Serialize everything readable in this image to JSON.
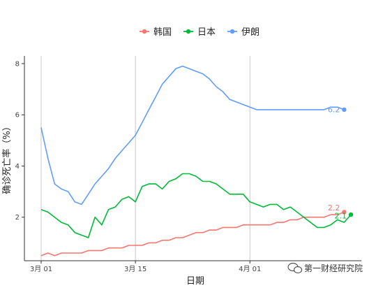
{
  "chart_data": {
    "type": "line",
    "xlabel": "日期",
    "ylabel": "确诊死亡率（%）",
    "x_ticks": [
      {
        "day": 0,
        "label": "3月 01"
      },
      {
        "day": 14,
        "label": "3月 15"
      },
      {
        "day": 31,
        "label": "4月 01"
      }
    ],
    "xlim": [
      0,
      46
    ],
    "ylim": [
      0.3,
      8.3
    ],
    "y_ticks": [
      2,
      4,
      6,
      8
    ],
    "grid": "vertical-major",
    "legend_position": "top",
    "series": [
      {
        "name": "韩国",
        "color": "#F8766D",
        "end_label": "2.2",
        "points": [
          [
            0,
            0.5
          ],
          [
            1,
            0.6
          ],
          [
            2,
            0.5
          ],
          [
            3,
            0.6
          ],
          [
            4,
            0.6
          ],
          [
            5,
            0.6
          ],
          [
            6,
            0.6
          ],
          [
            7,
            0.7
          ],
          [
            8,
            0.7
          ],
          [
            9,
            0.7
          ],
          [
            10,
            0.8
          ],
          [
            11,
            0.8
          ],
          [
            12,
            0.8
          ],
          [
            13,
            0.9
          ],
          [
            14,
            0.9
          ],
          [
            15,
            0.9
          ],
          [
            16,
            1.0
          ],
          [
            17,
            1.0
          ],
          [
            18,
            1.1
          ],
          [
            19,
            1.1
          ],
          [
            20,
            1.2
          ],
          [
            21,
            1.2
          ],
          [
            22,
            1.3
          ],
          [
            23,
            1.4
          ],
          [
            24,
            1.4
          ],
          [
            25,
            1.5
          ],
          [
            26,
            1.5
          ],
          [
            27,
            1.6
          ],
          [
            28,
            1.6
          ],
          [
            29,
            1.6
          ],
          [
            30,
            1.7
          ],
          [
            31,
            1.7
          ],
          [
            32,
            1.7
          ],
          [
            33,
            1.7
          ],
          [
            34,
            1.7
          ],
          [
            35,
            1.8
          ],
          [
            36,
            1.8
          ],
          [
            37,
            1.9
          ],
          [
            38,
            1.9
          ],
          [
            39,
            2.0
          ],
          [
            40,
            2.0
          ],
          [
            41,
            2.0
          ],
          [
            42,
            2.0
          ],
          [
            43,
            2.1
          ],
          [
            44,
            2.1
          ],
          [
            45,
            2.2
          ]
        ]
      },
      {
        "name": "日本",
        "color": "#00BA38",
        "end_label": "2.1",
        "points": [
          [
            0,
            2.3
          ],
          [
            1,
            2.2
          ],
          [
            2,
            2.0
          ],
          [
            3,
            1.8
          ],
          [
            4,
            1.7
          ],
          [
            5,
            1.4
          ],
          [
            6,
            1.3
          ],
          [
            7,
            1.2
          ],
          [
            8,
            2.0
          ],
          [
            9,
            1.7
          ],
          [
            10,
            2.3
          ],
          [
            11,
            2.4
          ],
          [
            12,
            2.7
          ],
          [
            13,
            2.8
          ],
          [
            14,
            2.6
          ],
          [
            15,
            3.2
          ],
          [
            16,
            3.3
          ],
          [
            17,
            3.3
          ],
          [
            18,
            3.1
          ],
          [
            19,
            3.4
          ],
          [
            20,
            3.5
          ],
          [
            21,
            3.7
          ],
          [
            22,
            3.7
          ],
          [
            23,
            3.6
          ],
          [
            24,
            3.4
          ],
          [
            25,
            3.4
          ],
          [
            26,
            3.3
          ],
          [
            27,
            3.1
          ],
          [
            28,
            2.9
          ],
          [
            29,
            2.9
          ],
          [
            30,
            2.9
          ],
          [
            31,
            2.6
          ],
          [
            32,
            2.5
          ],
          [
            33,
            2.4
          ],
          [
            34,
            2.5
          ],
          [
            35,
            2.5
          ],
          [
            36,
            2.3
          ],
          [
            37,
            2.4
          ],
          [
            38,
            2.2
          ],
          [
            39,
            2.0
          ],
          [
            40,
            1.8
          ],
          [
            41,
            1.6
          ],
          [
            42,
            1.6
          ],
          [
            43,
            1.7
          ],
          [
            44,
            1.9
          ],
          [
            45,
            1.8
          ],
          [
            46,
            2.1
          ]
        ]
      },
      {
        "name": "伊朗",
        "color": "#619CFF",
        "end_label": "6.2",
        "points": [
          [
            0,
            5.5
          ],
          [
            1,
            4.3
          ],
          [
            2,
            3.3
          ],
          [
            3,
            3.1
          ],
          [
            4,
            3.0
          ],
          [
            5,
            2.6
          ],
          [
            6,
            2.5
          ],
          [
            7,
            2.9
          ],
          [
            8,
            3.3
          ],
          [
            9,
            3.6
          ],
          [
            10,
            3.9
          ],
          [
            11,
            4.3
          ],
          [
            12,
            4.6
          ],
          [
            13,
            4.9
          ],
          [
            14,
            5.2
          ],
          [
            15,
            5.7
          ],
          [
            16,
            6.2
          ],
          [
            17,
            6.7
          ],
          [
            18,
            7.2
          ],
          [
            19,
            7.5
          ],
          [
            20,
            7.8
          ],
          [
            21,
            7.9
          ],
          [
            22,
            7.8
          ],
          [
            23,
            7.7
          ],
          [
            24,
            7.6
          ],
          [
            25,
            7.4
          ],
          [
            26,
            7.1
          ],
          [
            27,
            6.9
          ],
          [
            28,
            6.6
          ],
          [
            29,
            6.5
          ],
          [
            30,
            6.4
          ],
          [
            31,
            6.3
          ],
          [
            32,
            6.2
          ],
          [
            33,
            6.2
          ],
          [
            34,
            6.2
          ],
          [
            35,
            6.2
          ],
          [
            36,
            6.2
          ],
          [
            37,
            6.2
          ],
          [
            38,
            6.2
          ],
          [
            39,
            6.2
          ],
          [
            40,
            6.2
          ],
          [
            41,
            6.2
          ],
          [
            42,
            6.2
          ],
          [
            43,
            6.3
          ],
          [
            44,
            6.3
          ],
          [
            45,
            6.2
          ]
        ]
      }
    ]
  },
  "watermark": {
    "icon": "wechat-icon",
    "text": "第一财经研究院"
  }
}
